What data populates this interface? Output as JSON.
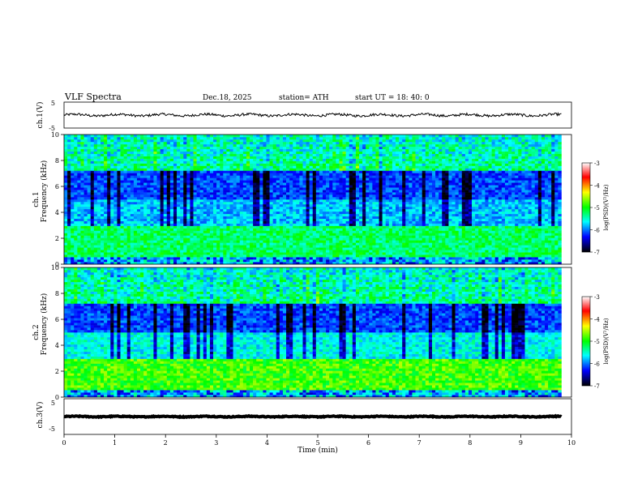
{
  "header": {
    "title": "VLF  Spectra",
    "date": "Dec.18, 2025",
    "station": "station= ATH",
    "start": "start  UT  =   18: 40: 0"
  },
  "chart_data": {
    "type": "heatmap",
    "title": "VLF  Spectra",
    "xlabel": "Time  (min)",
    "xlim": [
      0,
      10
    ],
    "x_ticks": [
      "0",
      "1",
      "2",
      "3",
      "4",
      "5",
      "6",
      "7",
      "8",
      "9",
      "10"
    ],
    "panels": [
      {
        "name": "ch1-waveform",
        "type": "line",
        "ylabel": "ch.1(V)",
        "ylim": [
          -5,
          5
        ],
        "y_ticks": [
          "5",
          "-5"
        ],
        "mean_value": 0,
        "amplitude": 0.8
      },
      {
        "name": "ch1-spectrogram",
        "type": "heatmap",
        "ylabel_top": "ch.1",
        "ylabel": "Frequency  (kHz)",
        "ylim": [
          0,
          10
        ],
        "y_ticks": [
          "0",
          "2",
          "4",
          "6",
          "8",
          "10"
        ],
        "colorbar": {
          "label": "log(PSD)(V²/Hz)",
          "range": [
            -7,
            -3
          ],
          "ticks": [
            "-3",
            "-4",
            "-5",
            "-6",
            "-7"
          ]
        }
      },
      {
        "name": "ch2-spectrogram",
        "type": "heatmap",
        "ylabel_top": "ch.2",
        "ylabel": "Frequency  (kHz)",
        "ylim": [
          0,
          10
        ],
        "y_ticks": [
          "0",
          "2",
          "4",
          "6",
          "8",
          "10"
        ],
        "colorbar": {
          "label": "log(PSD)(V²/Hz)",
          "range": [
            -7,
            -3
          ],
          "ticks": [
            "-3",
            "-4",
            "-5",
            "-6",
            "-7"
          ]
        }
      },
      {
        "name": "ch3-waveform",
        "type": "line",
        "ylabel": "ch.3(V)",
        "ylim": [
          -5,
          5
        ],
        "y_ticks": [
          "5",
          "-5"
        ],
        "mean_value": 0,
        "amplitude": 0.2
      }
    ],
    "colormap": [
      "#000000",
      "#0000ff",
      "#00ffff",
      "#00ff00",
      "#ffff00",
      "#ff0000",
      "#ffffff"
    ]
  }
}
